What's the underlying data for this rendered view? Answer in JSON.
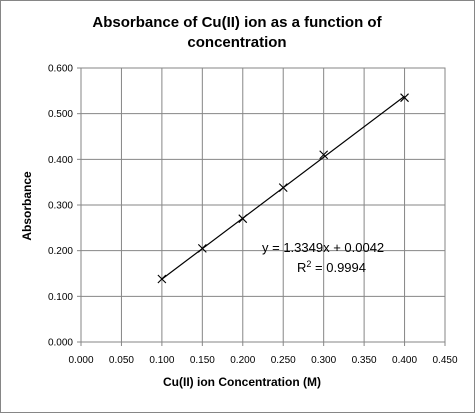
{
  "chart_data": {
    "type": "scatter",
    "title_lines": [
      "Absorbance of Cu(II) ion as a function of",
      "concentration"
    ],
    "xlabel": "Cu(II) ion Concentration (M)",
    "ylabel": "Absorbance",
    "xlim": [
      0,
      0.45
    ],
    "ylim": [
      0,
      0.6
    ],
    "x_ticks": [
      "0.000",
      "0.050",
      "0.100",
      "0.150",
      "0.200",
      "0.250",
      "0.300",
      "0.350",
      "0.400",
      "0.450"
    ],
    "y_ticks": [
      "0.000",
      "0.100",
      "0.200",
      "0.300",
      "0.400",
      "0.500",
      "0.600"
    ],
    "grid": true,
    "series": [
      {
        "x": [
          0.1,
          0.15,
          0.2,
          0.25,
          0.3,
          0.4
        ],
        "y": [
          0.138,
          0.205,
          0.27,
          0.338,
          0.41,
          0.535
        ],
        "marker": "x"
      }
    ],
    "trendline": {
      "slope": 1.3349,
      "intercept": 0.0042,
      "x_range": [
        0.1,
        0.4
      ]
    },
    "annotations": {
      "equation": "y = 1.3349x + 0.0042",
      "r2_prefix": "R",
      "r2_sup": "2",
      "r2_value": " = 0.9994"
    },
    "colors": {
      "line": "#000000",
      "grid": "#868686",
      "frame": "#868686"
    }
  }
}
